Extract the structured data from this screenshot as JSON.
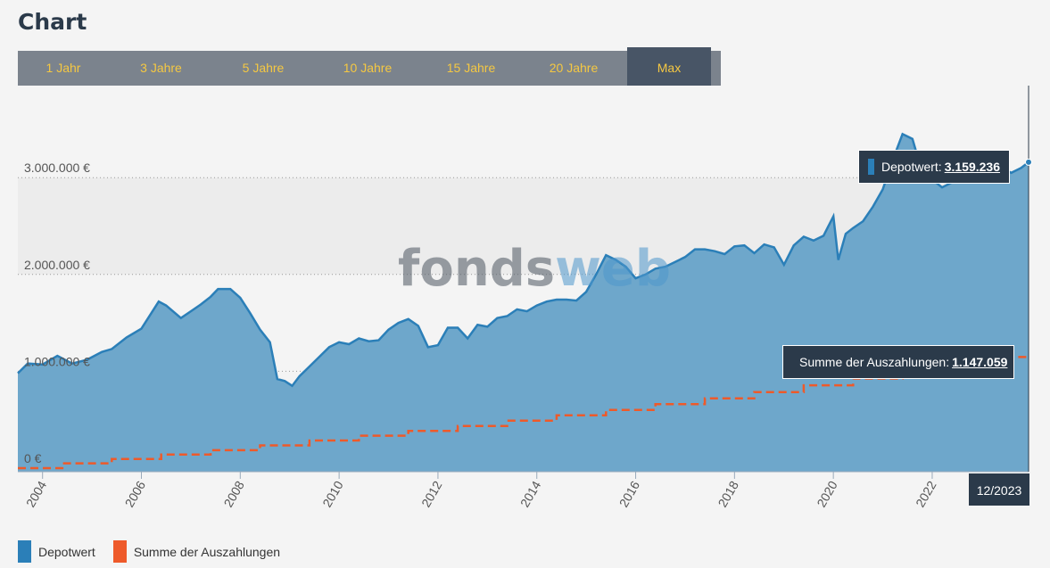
{
  "header": {
    "title": "Chart"
  },
  "tabs": [
    {
      "label": "1 Jahr",
      "active": false
    },
    {
      "label": "3 Jahre",
      "active": false
    },
    {
      "label": "5 Jahre",
      "active": false
    },
    {
      "label": "10 Jahre",
      "active": false
    },
    {
      "label": "15 Jahre",
      "active": false
    },
    {
      "label": "20 Jahre",
      "active": false
    },
    {
      "label": "Max",
      "active": true
    }
  ],
  "colors": {
    "depot": "#2b7fb8",
    "depot_fill": "#6ea7cb",
    "payout": "#ee5a2a",
    "tab_text": "#f5c842"
  },
  "watermark": {
    "part1": "fonds",
    "part2": "web"
  },
  "tooltips": {
    "depot": {
      "label": "Depotwert:",
      "value": "3.159.236"
    },
    "payout": {
      "label": "Summe der Auszahlungen:",
      "value": "1.147.059"
    },
    "date": "12/2023"
  },
  "legend": [
    {
      "label": "Depotwert",
      "color": "#2b7fb8"
    },
    {
      "label": "Summe der Auszahlungen",
      "color": "#ee5a2a"
    }
  ],
  "chart_data": {
    "type": "area",
    "title": "",
    "xlabel": "",
    "ylabel": "",
    "ylim": [
      0,
      3800000
    ],
    "xlim": [
      2003.5,
      2023.95
    ],
    "y_ticks": [
      {
        "value": 0,
        "label": "0 €"
      },
      {
        "value": 1000000,
        "label": "1.000.000 €"
      },
      {
        "value": 2000000,
        "label": "2.000.000 €"
      },
      {
        "value": 3000000,
        "label": "3.000.000 €"
      }
    ],
    "x_ticks": [
      {
        "value": 2004,
        "label": "2004"
      },
      {
        "value": 2006,
        "label": "2006"
      },
      {
        "value": 2008,
        "label": "2008"
      },
      {
        "value": 2010,
        "label": "2010"
      },
      {
        "value": 2012,
        "label": "2012"
      },
      {
        "value": 2014,
        "label": "2014"
      },
      {
        "value": 2016,
        "label": "2016"
      },
      {
        "value": 2018,
        "label": "2018"
      },
      {
        "value": 2020,
        "label": "2020"
      },
      {
        "value": 2022,
        "label": "2022"
      }
    ],
    "grid": "horizontal-dotted",
    "legend_position": "bottom-left",
    "series": [
      {
        "name": "Depotwert",
        "type": "area",
        "x": [
          2003.5,
          2003.7,
          2004.0,
          2004.3,
          2004.6,
          2004.9,
          2005.2,
          2005.4,
          2005.7,
          2006.0,
          2006.2,
          2006.35,
          2006.5,
          2006.8,
          2007.0,
          2007.2,
          2007.4,
          2007.55,
          2007.8,
          2008.0,
          2008.2,
          2008.4,
          2008.6,
          2008.75,
          2008.9,
          2009.05,
          2009.2,
          2009.4,
          2009.6,
          2009.8,
          2010.0,
          2010.2,
          2010.4,
          2010.6,
          2010.8,
          2011.0,
          2011.2,
          2011.4,
          2011.6,
          2011.8,
          2012.0,
          2012.2,
          2012.4,
          2012.6,
          2012.8,
          2013.0,
          2013.2,
          2013.4,
          2013.6,
          2013.8,
          2014.0,
          2014.2,
          2014.4,
          2014.6,
          2014.8,
          2015.0,
          2015.2,
          2015.4,
          2015.6,
          2015.8,
          2016.0,
          2016.2,
          2016.4,
          2016.6,
          2016.8,
          2017.0,
          2017.2,
          2017.4,
          2017.6,
          2017.8,
          2018.0,
          2018.2,
          2018.4,
          2018.6,
          2018.8,
          2019.0,
          2019.2,
          2019.4,
          2019.6,
          2019.8,
          2020.0,
          2020.1,
          2020.25,
          2020.4,
          2020.6,
          2020.8,
          2021.0,
          2021.2,
          2021.4,
          2021.6,
          2021.8,
          2022.0,
          2022.2,
          2022.4,
          2022.6,
          2022.8,
          2023.0,
          2023.2,
          2023.4,
          2023.6,
          2023.8,
          2023.95
        ],
        "values": [
          980000,
          1080000,
          1070000,
          1160000,
          1080000,
          1120000,
          1200000,
          1230000,
          1350000,
          1440000,
          1600000,
          1720000,
          1680000,
          1550000,
          1620000,
          1690000,
          1770000,
          1850000,
          1850000,
          1760000,
          1600000,
          1430000,
          1300000,
          920000,
          900000,
          850000,
          950000,
          1050000,
          1150000,
          1250000,
          1300000,
          1280000,
          1340000,
          1310000,
          1320000,
          1430000,
          1500000,
          1540000,
          1470000,
          1250000,
          1270000,
          1450000,
          1450000,
          1340000,
          1480000,
          1460000,
          1550000,
          1570000,
          1640000,
          1620000,
          1680000,
          1720000,
          1740000,
          1740000,
          1730000,
          1820000,
          2000000,
          2200000,
          2150000,
          2080000,
          1960000,
          2000000,
          2060000,
          2080000,
          2130000,
          2180000,
          2260000,
          2260000,
          2240000,
          2210000,
          2290000,
          2300000,
          2220000,
          2310000,
          2280000,
          2100000,
          2300000,
          2390000,
          2350000,
          2400000,
          2600000,
          2150000,
          2420000,
          2480000,
          2550000,
          2700000,
          2880000,
          3180000,
          3450000,
          3400000,
          3050000,
          2980000,
          2900000,
          2950000,
          3050000,
          3150000,
          3180000,
          3120000,
          3100000,
          3050000,
          3100000,
          3159236
        ]
      },
      {
        "name": "Summe der Auszahlungen",
        "type": "step-dashed",
        "steps": [
          {
            "x": 2004.4,
            "value": 50000
          },
          {
            "x": 2005.4,
            "value": 95000
          },
          {
            "x": 2006.4,
            "value": 140000
          },
          {
            "x": 2007.4,
            "value": 185000
          },
          {
            "x": 2008.4,
            "value": 235000
          },
          {
            "x": 2009.4,
            "value": 285000
          },
          {
            "x": 2010.4,
            "value": 335000
          },
          {
            "x": 2011.4,
            "value": 385000
          },
          {
            "x": 2012.4,
            "value": 435000
          },
          {
            "x": 2013.4,
            "value": 490000
          },
          {
            "x": 2014.4,
            "value": 545000
          },
          {
            "x": 2015.4,
            "value": 600000
          },
          {
            "x": 2016.4,
            "value": 660000
          },
          {
            "x": 2017.4,
            "value": 720000
          },
          {
            "x": 2018.4,
            "value": 785000
          },
          {
            "x": 2019.4,
            "value": 855000
          },
          {
            "x": 2020.4,
            "value": 925000
          },
          {
            "x": 2021.4,
            "value": 1000000
          },
          {
            "x": 2022.4,
            "value": 1075000
          },
          {
            "x": 2023.4,
            "value": 1147059
          }
        ],
        "start_value": 0,
        "end_x": 2023.95
      }
    ]
  }
}
